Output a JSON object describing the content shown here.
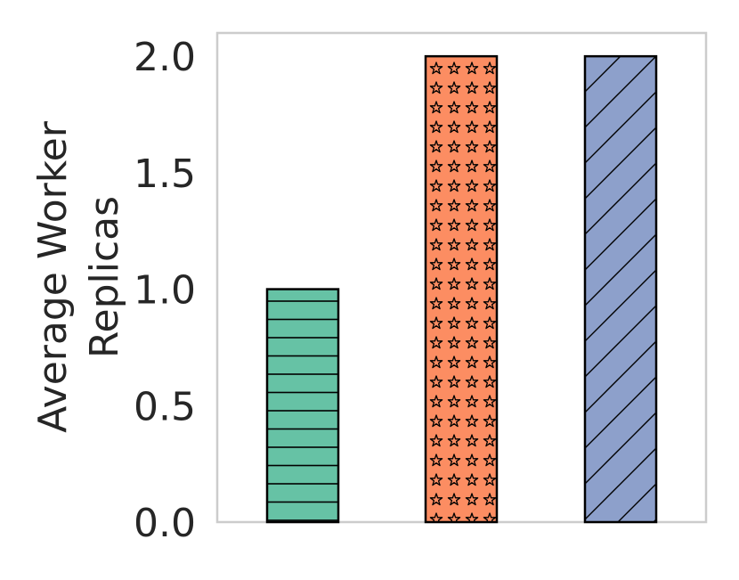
{
  "chart_data": {
    "type": "bar",
    "title": "",
    "xlabel": "",
    "ylabel": [
      "Average Worker",
      "Replicas"
    ],
    "categories": [
      "",
      "",
      ""
    ],
    "series": [
      {
        "values": [
          1.0,
          2.0,
          2.0
        ],
        "colors": [
          "#66c2a5",
          "#fc8d62",
          "#8da0cb"
        ],
        "hatches": [
          "horizontal-lines",
          "stars",
          "diagonal-lines"
        ]
      }
    ],
    "ylim": [
      0,
      2.1
    ],
    "yticks": [
      0.0,
      0.5,
      1.0,
      1.5,
      2.0
    ],
    "ytick_labels": [
      "0.0",
      "0.5",
      "1.0",
      "1.5",
      "2.0"
    ],
    "grid": false,
    "legend": "none",
    "frame_color": "#cccccc",
    "bar_edge_color": "#000000"
  }
}
